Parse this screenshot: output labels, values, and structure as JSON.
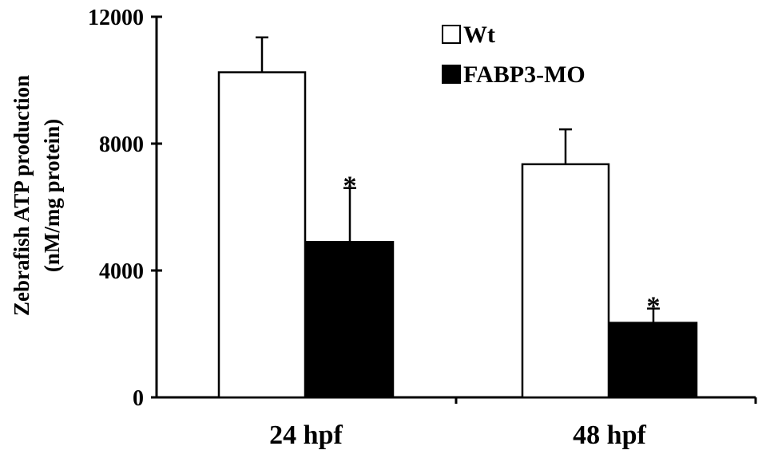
{
  "chart_data": {
    "type": "bar",
    "title": "",
    "xlabel": "",
    "ylabel": [
      "Zebrafish ATP production",
      "(nM/mg protein)"
    ],
    "categories": [
      "24 hpf",
      "48 hpf"
    ],
    "ylim": [
      0,
      12000
    ],
    "yticks": [
      0,
      4000,
      8000,
      12000
    ],
    "grid": false,
    "legend_position": "top-right",
    "series": [
      {
        "name": "Wt",
        "fill": "#ffffff",
        "stroke": "#000000",
        "values": [
          10250,
          7350
        ],
        "errors": [
          1100,
          1100
        ],
        "significance": [
          "",
          ""
        ]
      },
      {
        "name": "FABP3-MO",
        "fill": "#000000",
        "stroke": "#000000",
        "values": [
          4900,
          2350
        ],
        "errors": [
          1700,
          450
        ],
        "significance": [
          "*",
          "*"
        ]
      }
    ]
  }
}
